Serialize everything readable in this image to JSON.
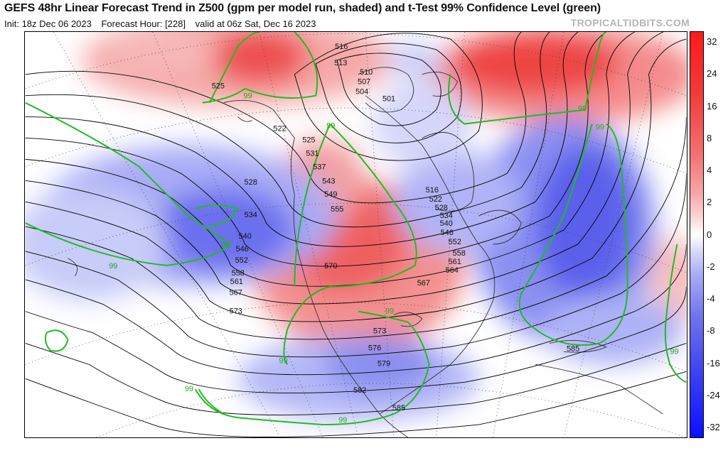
{
  "header": {
    "title": "GEFS 48hr Linear Forecast Trend in Z500 (gpm per model run, shaded) and t-Test 99% Confidence Level (green)",
    "init": "Init: 18z Dec 06 2023",
    "forecast_hour": "Forecast Hour: [228]",
    "valid": "valid at 06z Sat, Dec 16 2023",
    "credit": "TROPICALTIDBITS.COM"
  },
  "colors": {
    "strong_positive": "#f03030",
    "weak_positive": "#fbd0d0",
    "neutral": "#ffffff",
    "weak_negative": "#d0d4fa",
    "strong_negative": "#3a40ee",
    "confidence_contour": "#22bb22",
    "height_contour": "#000000"
  },
  "colorbar": {
    "labels": [
      "32",
      "24",
      "16",
      "8",
      "4",
      "2",
      "0",
      "-2",
      "-4",
      "-8",
      "-16",
      "-24",
      "-32"
    ]
  },
  "contour_labels": [
    {
      "text": "516"
    },
    {
      "text": "513"
    },
    {
      "text": "510"
    },
    {
      "text": "507"
    },
    {
      "text": "504"
    },
    {
      "text": "501"
    },
    {
      "text": "525"
    },
    {
      "text": "522"
    },
    {
      "text": "525"
    },
    {
      "text": "531"
    },
    {
      "text": "537"
    },
    {
      "text": "543"
    },
    {
      "text": "549"
    },
    {
      "text": "555"
    },
    {
      "text": "528"
    },
    {
      "text": "534"
    },
    {
      "text": "540"
    },
    {
      "text": "546"
    },
    {
      "text": "552"
    },
    {
      "text": "558"
    },
    {
      "text": "561"
    },
    {
      "text": "567"
    },
    {
      "text": "573"
    },
    {
      "text": "570"
    },
    {
      "text": "516"
    },
    {
      "text": "522"
    },
    {
      "text": "528"
    },
    {
      "text": "534"
    },
    {
      "text": "540"
    },
    {
      "text": "546"
    },
    {
      "text": "552"
    },
    {
      "text": "558"
    },
    {
      "text": "561"
    },
    {
      "text": "564"
    },
    {
      "text": "567"
    },
    {
      "text": "573"
    },
    {
      "text": "576"
    },
    {
      "text": "579"
    },
    {
      "text": "582"
    },
    {
      "text": "585"
    },
    {
      "text": "585"
    }
  ],
  "confidence_labels": [
    "99",
    "99",
    "99",
    "99",
    "99",
    "99",
    "99",
    "99",
    "99",
    "99",
    "99"
  ]
}
